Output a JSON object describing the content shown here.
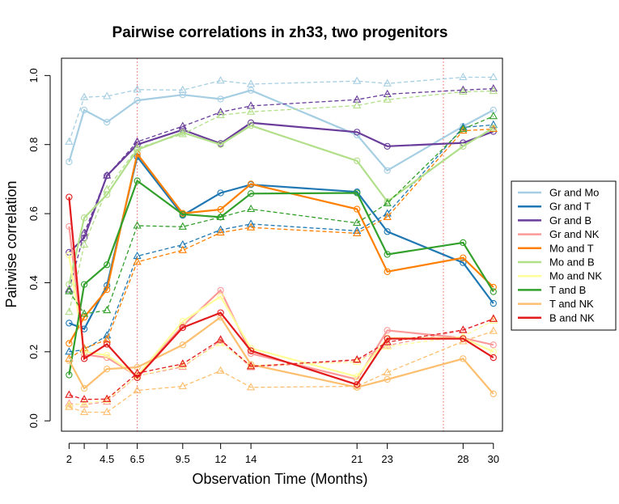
{
  "chart_data": {
    "type": "line",
    "title": "Pairwise correlations in zh33, two progenitors",
    "xlabel": "Observation Time (Months)",
    "ylabel": "Pairwise correlation",
    "x": [
      2,
      3,
      4.5,
      6.5,
      9.5,
      12,
      14,
      21,
      23,
      28,
      30
    ],
    "x_tick_labels": [
      "2",
      "4.5",
      "6.5",
      "9.5",
      "12",
      "14",
      "21",
      "23",
      "28",
      "30"
    ],
    "x_tick_values": [
      2,
      4.5,
      6.5,
      9.5,
      12,
      14,
      21,
      23,
      28,
      30
    ],
    "xlim": [
      1.5,
      30.6
    ],
    "ylim": [
      -0.03,
      1.05
    ],
    "y_ticks": [
      0.0,
      0.2,
      0.4,
      0.6,
      0.8,
      1.0
    ],
    "y_tick_labels": [
      "0.0",
      "0.2",
      "0.4",
      "0.6",
      "0.8",
      "1.0"
    ],
    "vertical_reference_lines": [
      6.5,
      26.7
    ],
    "legend_position": "right-outside",
    "series": [
      {
        "name": "Gr and Mo",
        "color": "#a6cee3",
        "solid": [
          0.75,
          0.9,
          0.865,
          0.928,
          0.944,
          0.932,
          0.957,
          0.828,
          0.725,
          0.853,
          0.9
        ],
        "dashed": [
          0.808,
          0.937,
          0.94,
          0.959,
          0.958,
          0.985,
          0.975,
          0.984,
          0.977,
          0.995,
          0.995
        ]
      },
      {
        "name": "Gr and T",
        "color": "#1f78b4",
        "solid": [
          0.283,
          0.266,
          0.392,
          0.765,
          0.595,
          0.66,
          0.684,
          0.663,
          0.548,
          0.458,
          0.34
        ],
        "dashed": [
          0.2,
          0.206,
          0.247,
          0.477,
          0.51,
          0.553,
          0.57,
          0.55,
          0.6,
          0.85,
          0.857
        ]
      },
      {
        "name": "Gr and B",
        "color": "#6a3d9a",
        "solid": [
          0.488,
          0.53,
          0.71,
          0.8,
          0.843,
          0.803,
          0.863,
          0.836,
          0.795,
          0.805,
          0.838
        ],
        "dashed": [
          0.38,
          0.544,
          0.71,
          0.808,
          0.853,
          0.894,
          0.912,
          0.93,
          0.946,
          0.958,
          0.962
        ]
      },
      {
        "name": "Gr and NK",
        "color": "#fb9a99",
        "solid": [
          0.563,
          0.192,
          0.183,
          0.13,
          0.275,
          0.378,
          0.195,
          0.12,
          0.262,
          0.24,
          0.22
        ],
        "dashed": [
          0.05,
          0.047,
          0.055,
          0.13,
          0.156,
          0.232,
          0.155,
          0.175,
          0.218,
          0.262,
          0.296
        ]
      },
      {
        "name": "Mo and T",
        "color": "#ff7f00",
        "solid": [
          0.224,
          0.3,
          0.38,
          0.773,
          0.601,
          0.612,
          0.686,
          0.613,
          0.432,
          0.472,
          0.387
        ],
        "dashed": [
          0.18,
          0.21,
          0.235,
          0.46,
          0.494,
          0.545,
          0.56,
          0.543,
          0.59,
          0.84,
          0.845
        ]
      },
      {
        "name": "Mo and B",
        "color": "#b2df8a",
        "solid": [
          0.395,
          0.588,
          0.655,
          0.785,
          0.835,
          0.8,
          0.855,
          0.753,
          0.635,
          0.795,
          0.848
        ],
        "dashed": [
          0.315,
          0.51,
          0.67,
          0.79,
          0.83,
          0.885,
          0.895,
          0.913,
          0.93,
          0.953,
          0.955
        ]
      },
      {
        "name": "Mo and NK",
        "color": "#ffff99",
        "solid": [
          0.48,
          0.2,
          0.19,
          0.13,
          0.288,
          0.36,
          0.21,
          0.128,
          0.24,
          0.24,
          0.2
        ],
        "dashed": [
          0.045,
          0.05,
          0.06,
          0.13,
          0.16,
          0.225,
          0.16,
          0.17,
          0.215,
          0.245,
          0.29
        ]
      },
      {
        "name": "T and B",
        "color": "#33a02c",
        "solid": [
          0.133,
          0.395,
          0.452,
          0.695,
          0.598,
          0.59,
          0.658,
          0.66,
          0.482,
          0.516,
          0.374
        ],
        "dashed": [
          0.375,
          0.31,
          0.32,
          0.565,
          0.562,
          0.59,
          0.613,
          0.573,
          0.63,
          0.845,
          0.882
        ]
      },
      {
        "name": "T and NK",
        "color": "#fdbf6f",
        "solid": [
          0.175,
          0.094,
          0.15,
          0.155,
          0.22,
          0.3,
          0.163,
          0.097,
          0.12,
          0.18,
          0.078
        ],
        "dashed": [
          0.04,
          0.025,
          0.025,
          0.088,
          0.1,
          0.145,
          0.097,
          0.1,
          0.14,
          0.23,
          0.26
        ]
      },
      {
        "name": "B and NK",
        "color": "#e31a1c",
        "solid": [
          0.648,
          0.18,
          0.222,
          0.125,
          0.27,
          0.313,
          0.203,
          0.105,
          0.238,
          0.238,
          0.183
        ],
        "dashed": [
          0.075,
          0.062,
          0.063,
          0.138,
          0.165,
          0.235,
          0.158,
          0.177,
          0.228,
          0.263,
          0.295
        ]
      }
    ]
  }
}
